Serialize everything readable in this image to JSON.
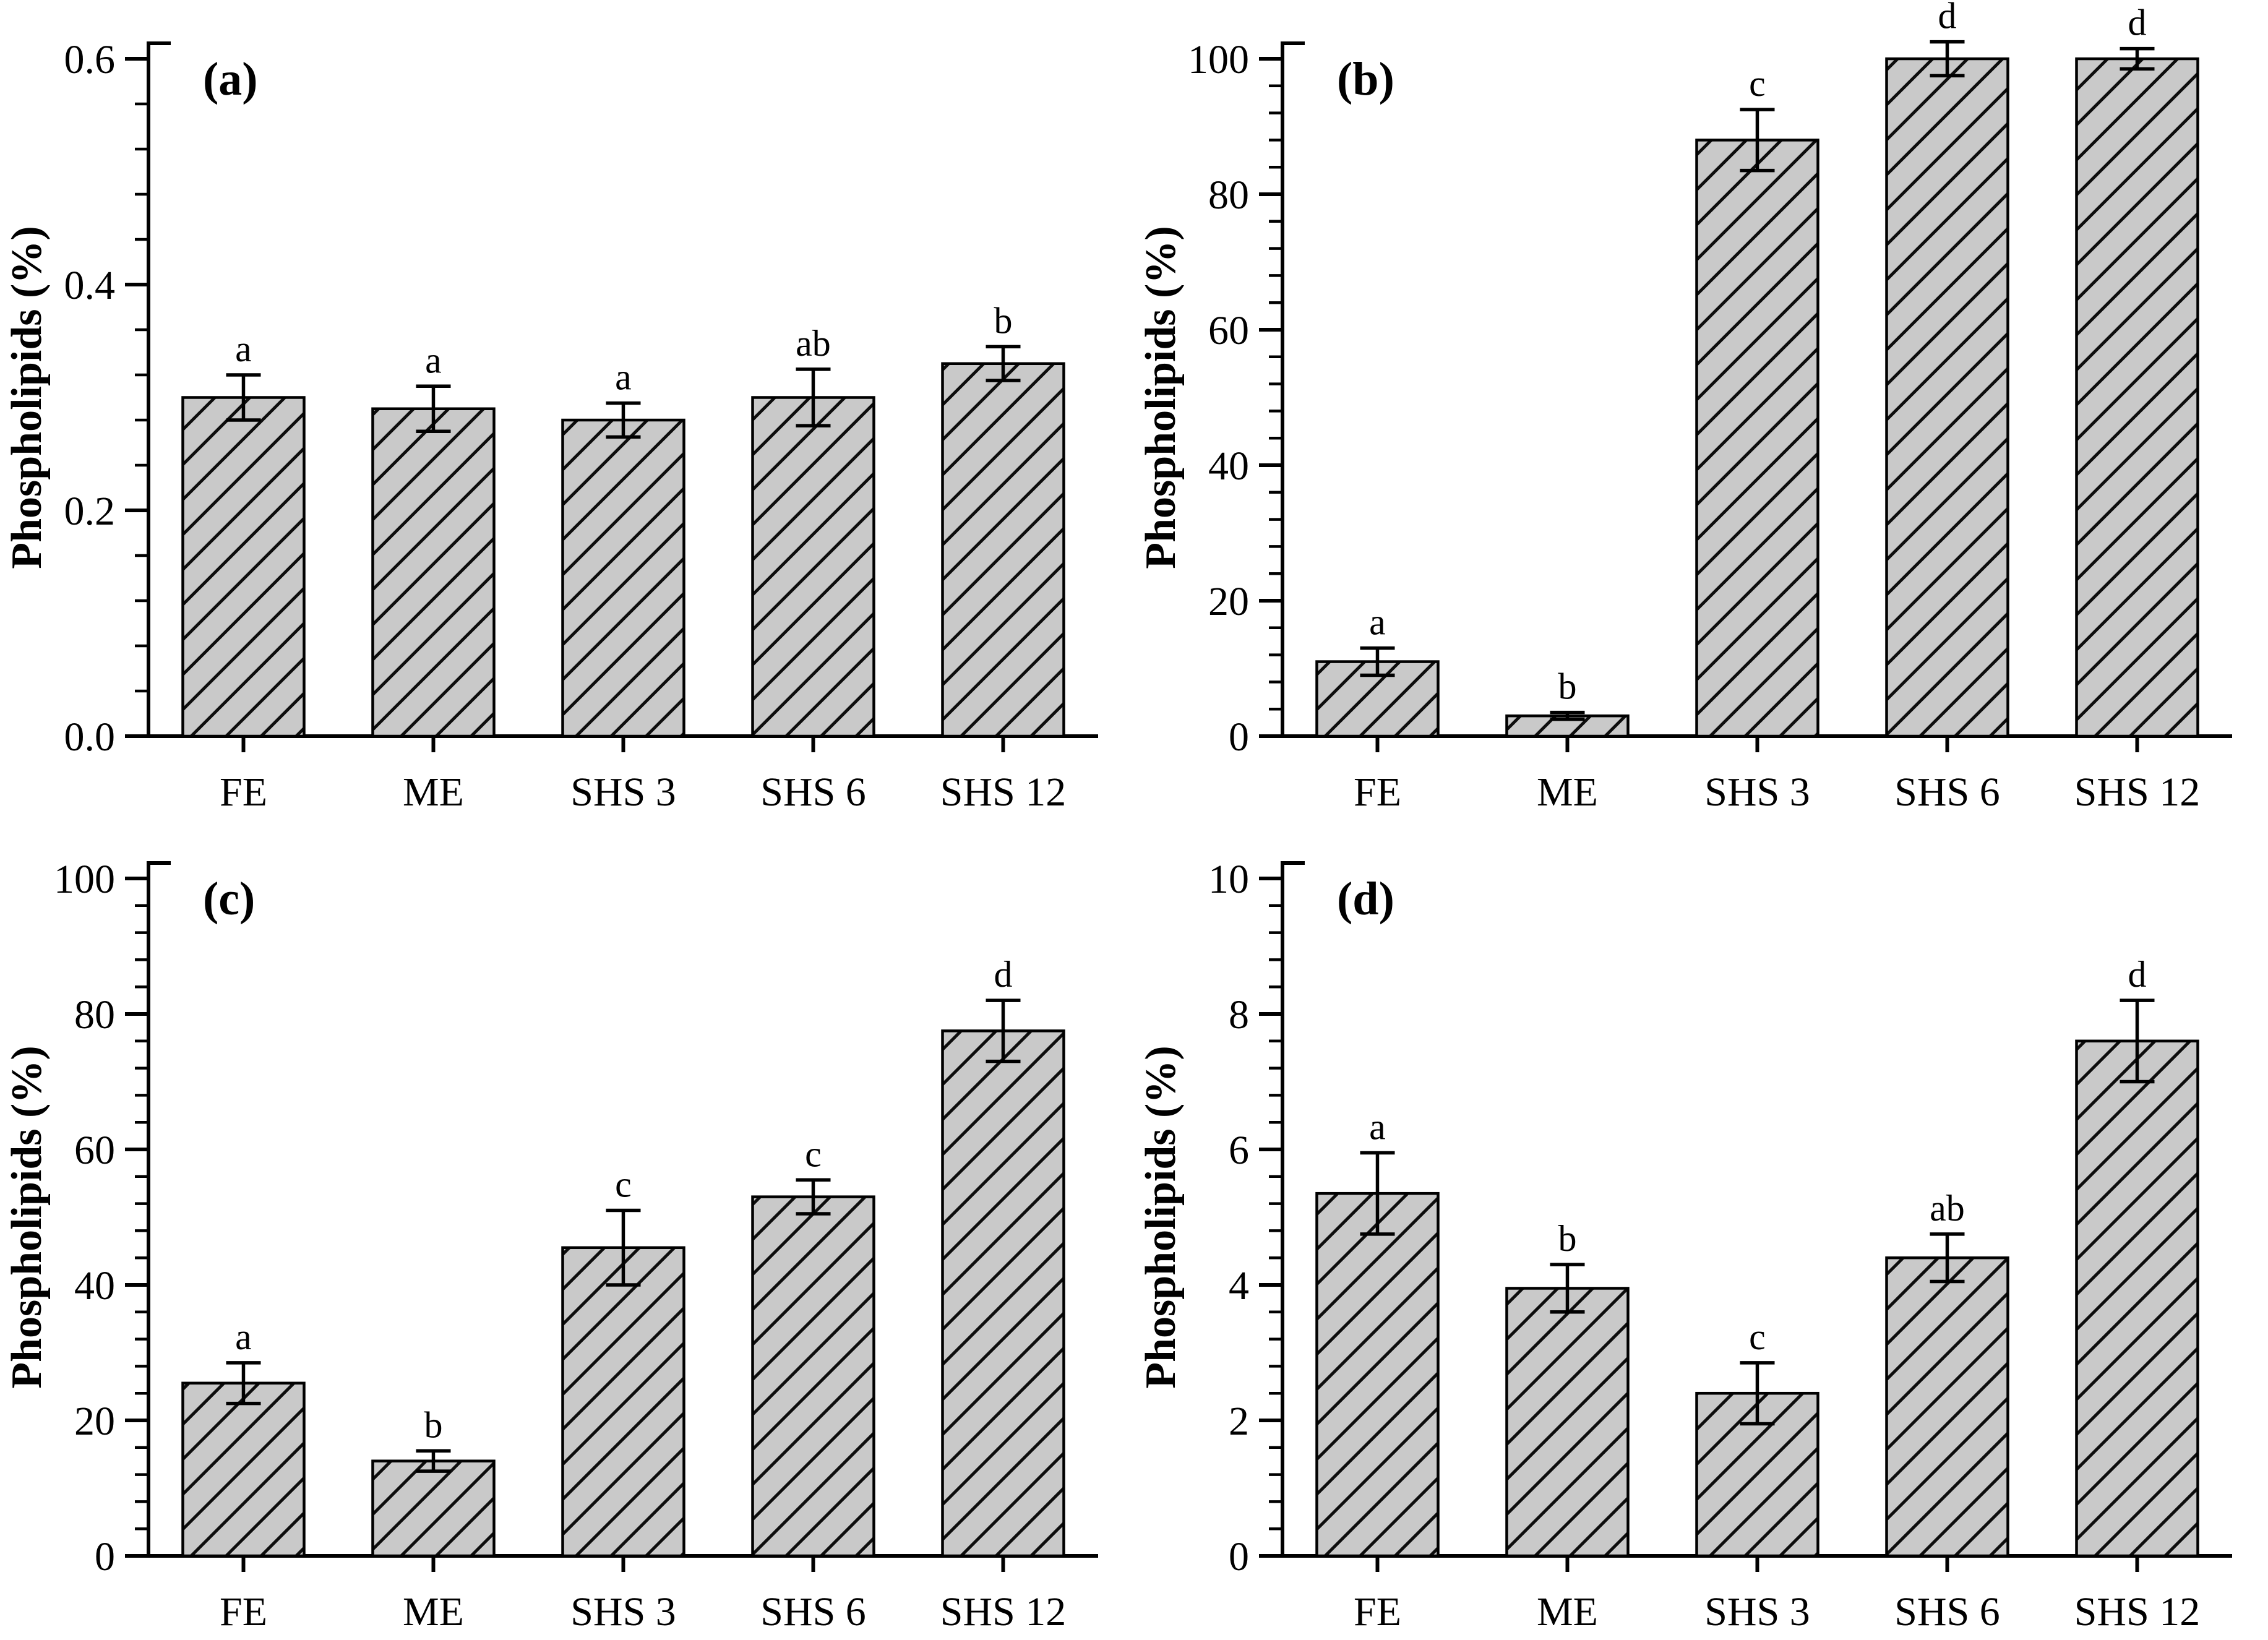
{
  "figure": {
    "background": "#ffffff",
    "panel_count": 4,
    "shared_y_axis_title": "Phospholipids (%)",
    "categories": [
      "FE",
      "ME",
      "SHS 3",
      "SHS 6",
      "SHS 12"
    ]
  },
  "styles": {
    "bar_fill": "#c9c9c9",
    "hatch_color": "#0d0d0d",
    "axis_color": "#000000",
    "text_color": "#000000"
  },
  "chart_data": [
    {
      "type": "bar",
      "panel_label": "(a)",
      "ylabel": "Phospholipids (%)",
      "xlabel": "",
      "categories": [
        "FE",
        "ME",
        "SHS 3",
        "SHS 6",
        "SHS 12"
      ],
      "values": [
        0.3,
        0.29,
        0.28,
        0.3,
        0.33
      ],
      "errors": [
        0.02,
        0.02,
        0.015,
        0.025,
        0.015
      ],
      "sig_letters": [
        "a",
        "a",
        "a",
        "ab",
        "b"
      ],
      "ylim": [
        0,
        0.6
      ],
      "y_major_step": 0.2,
      "y_minor_step": 0.04,
      "y_decimals": 1,
      "grid": false,
      "legend": false,
      "hatch": "diagonal-forward"
    },
    {
      "type": "bar",
      "panel_label": "(b)",
      "ylabel": "Phospholipids (%)",
      "xlabel": "",
      "categories": [
        "FE",
        "ME",
        "SHS 3",
        "SHS 6",
        "SHS 12"
      ],
      "values": [
        11,
        3,
        88,
        100,
        100
      ],
      "errors": [
        2,
        0.5,
        4.5,
        2.5,
        1.5
      ],
      "sig_letters": [
        "a",
        "b",
        "c",
        "d",
        "d"
      ],
      "ylim": [
        0,
        100
      ],
      "y_major_step": 20,
      "y_minor_step": 4,
      "y_decimals": 0,
      "grid": false,
      "legend": false,
      "hatch": "diagonal-forward"
    },
    {
      "type": "bar",
      "panel_label": "(c)",
      "ylabel": "Phospholipids (%)",
      "xlabel": "",
      "categories": [
        "FE",
        "ME",
        "SHS 3",
        "SHS 6",
        "SHS 12"
      ],
      "values": [
        25.5,
        14,
        45.5,
        53,
        77.5
      ],
      "errors": [
        3,
        1.5,
        5.5,
        2.5,
        4.5
      ],
      "sig_letters": [
        "a",
        "b",
        "c",
        "c",
        "d"
      ],
      "ylim": [
        0,
        100
      ],
      "y_major_step": 20,
      "y_minor_step": 4,
      "y_decimals": 0,
      "grid": false,
      "legend": false,
      "hatch": "diagonal-forward"
    },
    {
      "type": "bar",
      "panel_label": "(d)",
      "ylabel": "Phospholipids (%)",
      "xlabel": "",
      "categories": [
        "FE",
        "ME",
        "SHS 3",
        "SHS 6",
        "SHS 12"
      ],
      "values": [
        5.35,
        3.95,
        2.4,
        4.4,
        7.6
      ],
      "errors": [
        0.6,
        0.35,
        0.45,
        0.35,
        0.6
      ],
      "sig_letters": [
        "a",
        "b",
        "c",
        "ab",
        "d"
      ],
      "ylim": [
        0,
        10
      ],
      "y_major_step": 2,
      "y_minor_step": 0.4,
      "y_decimals": 0,
      "grid": false,
      "legend": false,
      "hatch": "diagonal-forward"
    }
  ]
}
